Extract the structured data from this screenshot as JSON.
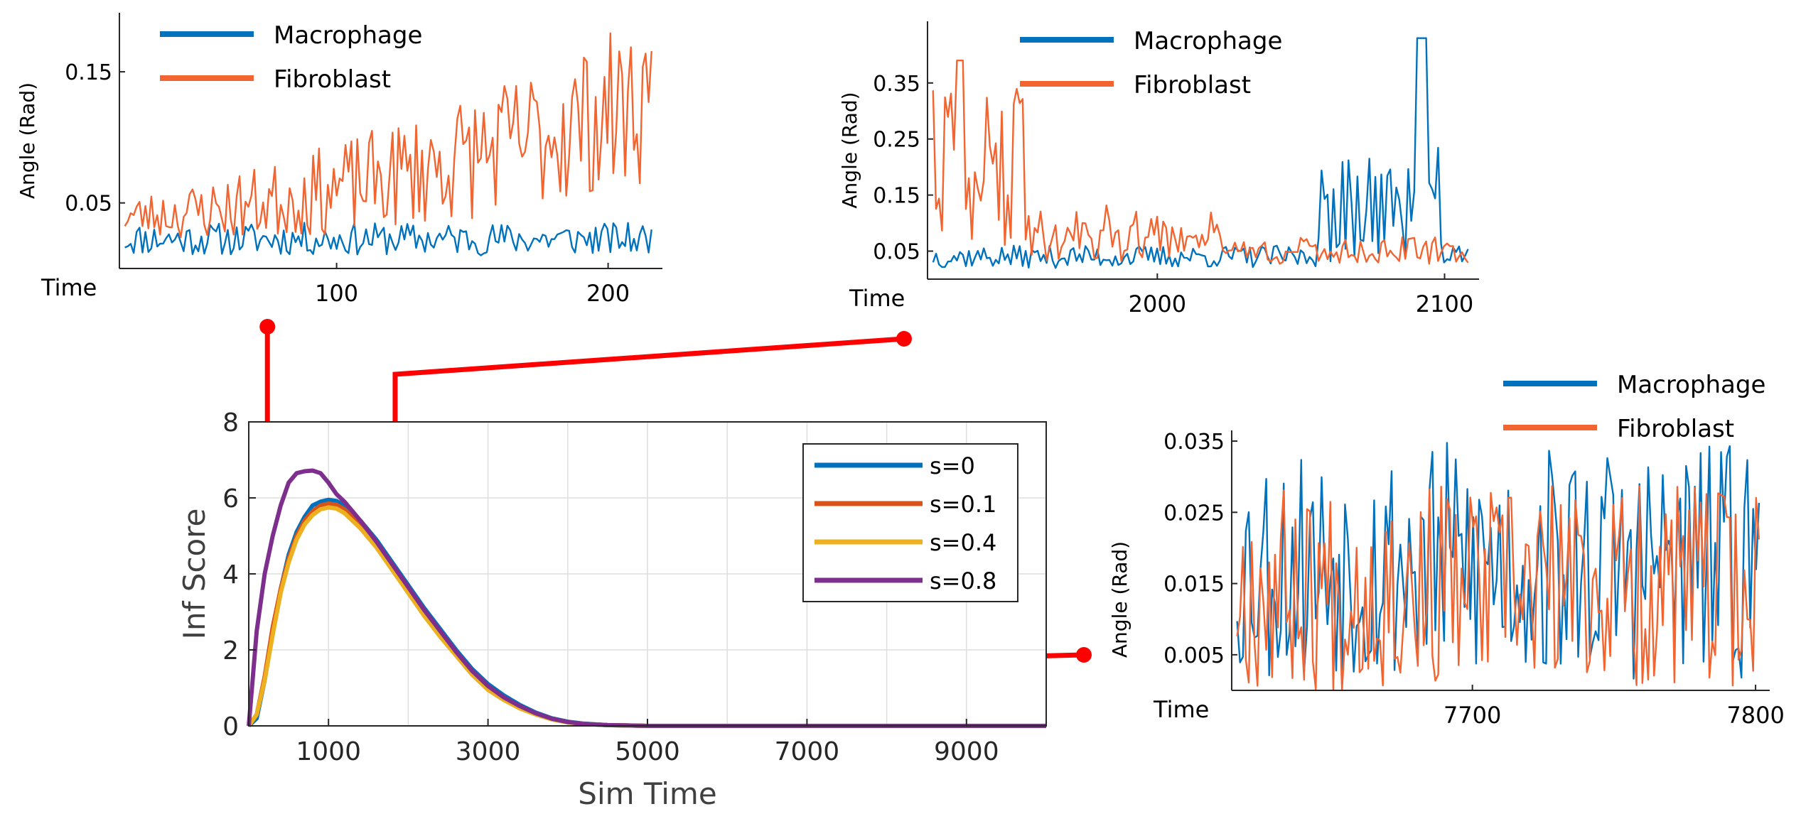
{
  "chart_data": [
    {
      "id": "main",
      "type": "line",
      "title": "",
      "xlabel": "Sim Time",
      "ylabel": "Inf Score",
      "xlim": [
        0,
        10000
      ],
      "ylim": [
        0,
        8
      ],
      "xticks": [
        1000,
        3000,
        5000,
        7000,
        9000
      ],
      "xtick_labels": [
        "1000",
        "3000",
        "5000",
        "7000",
        "9000"
      ],
      "yticks": [
        0,
        2,
        4,
        6,
        8
      ],
      "ytick_labels": [
        "0",
        "2",
        "4",
        "6",
        "8"
      ],
      "grid": true,
      "legend_position": "top-right",
      "series": [
        {
          "name": "s=0",
          "color": "#0072BD",
          "x": [
            0,
            100,
            200,
            300,
            400,
            500,
            600,
            700,
            800,
            900,
            1000,
            1100,
            1200,
            1400,
            1600,
            1800,
            2000,
            2200,
            2400,
            2600,
            2800,
            3000,
            3200,
            3400,
            3600,
            3800,
            4000,
            4200,
            4500,
            4800,
            5000,
            6000,
            7000,
            8000,
            9000,
            10000
          ],
          "y": [
            0,
            0.2,
            1.2,
            2.5,
            3.6,
            4.5,
            5.1,
            5.5,
            5.8,
            5.9,
            5.95,
            5.92,
            5.8,
            5.4,
            4.9,
            4.3,
            3.7,
            3.1,
            2.55,
            2.0,
            1.5,
            1.1,
            0.8,
            0.55,
            0.35,
            0.2,
            0.11,
            0.06,
            0.02,
            0.01,
            0,
            0,
            0,
            0,
            0,
            0
          ]
        },
        {
          "name": "s=0.1",
          "color": "#D95319",
          "x": [
            0,
            100,
            200,
            300,
            400,
            500,
            600,
            700,
            800,
            900,
            1000,
            1100,
            1200,
            1400,
            1600,
            1800,
            2000,
            2200,
            2400,
            2600,
            2800,
            3000,
            3200,
            3400,
            3600,
            3800,
            4000,
            4200,
            4500,
            4800,
            5000,
            6000,
            7000,
            8000,
            9000,
            10000
          ],
          "y": [
            0,
            0.3,
            1.3,
            2.6,
            3.6,
            4.4,
            5.0,
            5.4,
            5.65,
            5.8,
            5.85,
            5.82,
            5.7,
            5.3,
            4.8,
            4.2,
            3.6,
            3.0,
            2.45,
            1.9,
            1.4,
            1.0,
            0.72,
            0.5,
            0.32,
            0.18,
            0.1,
            0.05,
            0.02,
            0.01,
            0,
            0,
            0,
            0,
            0,
            0
          ]
        },
        {
          "name": "s=0.4",
          "color": "#EDB120",
          "x": [
            0,
            100,
            200,
            300,
            400,
            500,
            600,
            700,
            800,
            900,
            1000,
            1100,
            1200,
            1400,
            1600,
            1800,
            2000,
            2200,
            2400,
            2600,
            2800,
            3000,
            3200,
            3400,
            3600,
            3800,
            4000,
            4200,
            4500,
            4800,
            5000,
            6000,
            7000,
            8000,
            9000,
            10000
          ],
          "y": [
            0,
            0.3,
            1.2,
            2.4,
            3.5,
            4.3,
            4.9,
            5.3,
            5.55,
            5.7,
            5.75,
            5.72,
            5.6,
            5.2,
            4.7,
            4.1,
            3.5,
            2.9,
            2.35,
            1.85,
            1.35,
            0.95,
            0.68,
            0.46,
            0.3,
            0.17,
            0.09,
            0.05,
            0.02,
            0.01,
            0,
            0,
            0,
            0,
            0,
            0
          ]
        },
        {
          "name": "s=0.8",
          "color": "#7E2F8E",
          "x": [
            0,
            100,
            200,
            300,
            400,
            500,
            600,
            700,
            800,
            900,
            1000,
            1100,
            1200,
            1400,
            1600,
            1800,
            2000,
            2200,
            2400,
            2600,
            2800,
            3000,
            3200,
            3400,
            3600,
            3800,
            4000,
            4200,
            4500,
            4800,
            5000,
            6000,
            7000,
            8000,
            9000,
            10000
          ],
          "y": [
            0,
            2.5,
            4.0,
            5.0,
            5.8,
            6.4,
            6.65,
            6.7,
            6.72,
            6.65,
            6.4,
            6.1,
            5.9,
            5.4,
            4.85,
            4.25,
            3.65,
            3.05,
            2.5,
            1.95,
            1.45,
            1.05,
            0.75,
            0.52,
            0.33,
            0.19,
            0.1,
            0.05,
            0.02,
            0.01,
            0,
            0,
            0,
            0,
            0,
            0
          ]
        }
      ]
    },
    {
      "id": "inset1",
      "type": "line",
      "xlabel": "Time",
      "ylabel": "Angle (Rad)",
      "xlim": [
        20,
        220
      ],
      "ylim": [
        0.0,
        0.195
      ],
      "xticks": [
        100,
        200
      ],
      "xtick_labels": [
        "100",
        "200"
      ],
      "yticks": [
        0.05,
        0.15
      ],
      "ytick_labels": [
        "0.05",
        "0.15"
      ],
      "legend_position": "top-left",
      "series": [
        {
          "name": "Macrophage",
          "color": "#0072BD",
          "y_range": [
            0.01,
            0.035
          ],
          "seed": 11
        },
        {
          "name": "Fibroblast",
          "color": "#F26430",
          "y_range": [
            0.02,
            0.185
          ],
          "seed": 23
        }
      ]
    },
    {
      "id": "inset2",
      "type": "line",
      "xlabel": "Time",
      "ylabel": "Angle (Rad)",
      "xlim": [
        1920,
        2112
      ],
      "ylim": [
        0.0,
        0.46
      ],
      "xticks": [
        2000,
        2100
      ],
      "xtick_labels": [
        "2000",
        "2100"
      ],
      "yticks": [
        0.05,
        0.15,
        0.25,
        0.35
      ],
      "ytick_labels": [
        "0.05",
        "0.15",
        "0.25",
        "0.35"
      ],
      "legend_position": "top-left",
      "series": [
        {
          "name": "Macrophage",
          "color": "#0072BD",
          "y_range": [
            0.0,
            0.43
          ],
          "seed": 37
        },
        {
          "name": "Fibroblast",
          "color": "#F26430",
          "y_range": [
            0.0,
            0.39
          ],
          "seed": 41
        }
      ]
    },
    {
      "id": "inset3",
      "type": "line",
      "xlabel": "Time",
      "ylabel": "Angle (Rad)",
      "xlim": [
        7615,
        7805
      ],
      "ylim": [
        0.0,
        0.0365
      ],
      "xticks": [
        7700,
        7800
      ],
      "xtick_labels": [
        "7700",
        "7800"
      ],
      "yticks": [
        0.005,
        0.015,
        0.025,
        0.035
      ],
      "ytick_labels": [
        "0.005",
        "0.015",
        "0.025",
        "0.035"
      ],
      "legend_position": "top-right",
      "series": [
        {
          "name": "Macrophage",
          "color": "#0072BD",
          "y_range": [
            0.001,
            0.035
          ],
          "seed": 53
        },
        {
          "name": "Fibroblast",
          "color": "#F26430",
          "y_range": [
            0.0,
            0.029
          ],
          "seed": 67
        }
      ]
    }
  ],
  "callouts": {
    "color": "#FF0000",
    "markers_at_sim_time": [
      100,
      1800,
      7600
    ]
  }
}
